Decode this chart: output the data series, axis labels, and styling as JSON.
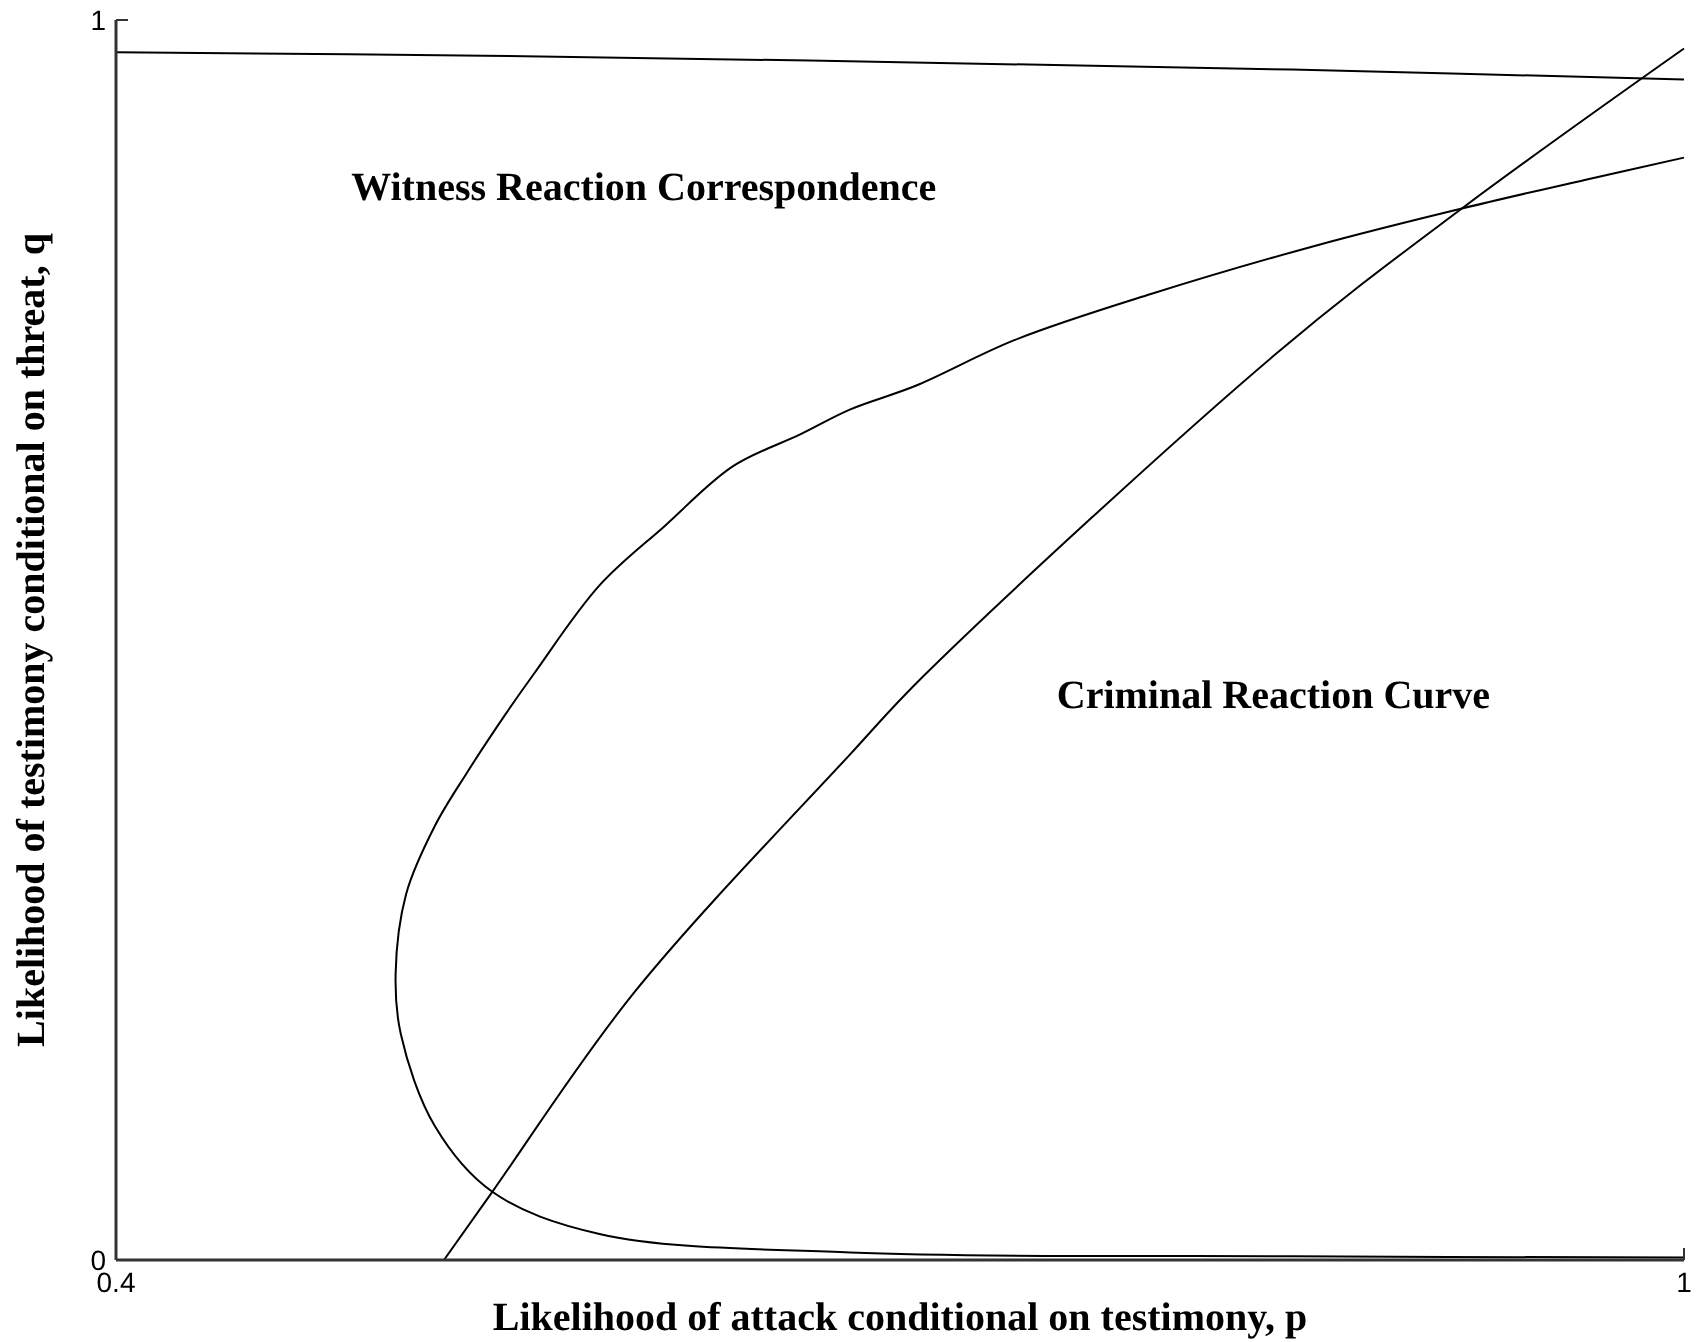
{
  "chart_data": {
    "type": "line",
    "xlabel": "Likelihood of attack conditional on testimony, p",
    "ylabel": "Likelihood of testimony conditional on threat, q",
    "xlim": [
      0.4,
      1
    ],
    "ylim": [
      0,
      1
    ],
    "xticks": [
      0.4,
      1
    ],
    "yticks": [
      0,
      1
    ],
    "grid": false,
    "marker": "none",
    "line_style": "solid",
    "annotations": [
      "Witness Reaction Correspondence",
      "Criminal Reaction Curve"
    ],
    "series": [
      {
        "color": "#000000",
        "x": [
          0.4,
          0.55,
          0.7,
          0.85,
          1
        ],
        "values": [
          0.974,
          0.971,
          0.966,
          0.96,
          0.952
        ]
      },
      {
        "color": "#000000",
        "x": [
          1,
          0.85,
          0.681,
          0.585,
          0.544,
          0.522,
          0.509,
          0.507,
          0.511,
          0.522,
          0.534,
          0.549,
          0.56,
          0.585,
          0.61,
          0.636,
          0.662,
          0.681,
          0.706,
          0.744,
          0.796,
          0.859,
          0.915,
          0.962,
          1
        ],
        "values": [
          0.002,
          0.003,
          0.006,
          0.021,
          0.055,
          0.108,
          0.182,
          0.231,
          0.295,
          0.35,
          0.392,
          0.44,
          0.473,
          0.544,
          0.592,
          0.64,
          0.666,
          0.686,
          0.705,
          0.742,
          0.779,
          0.818,
          0.848,
          0.871,
          0.889
        ]
      },
      {
        "color": "#000000",
        "x": [
          0.5255,
          0.544,
          0.598,
          0.681,
          0.709,
          0.844,
          0.915,
          1
        ],
        "values": [
          0,
          0.055,
          0.215,
          0.408,
          0.471,
          0.731,
          0.848,
          0.977
        ]
      }
    ]
  }
}
